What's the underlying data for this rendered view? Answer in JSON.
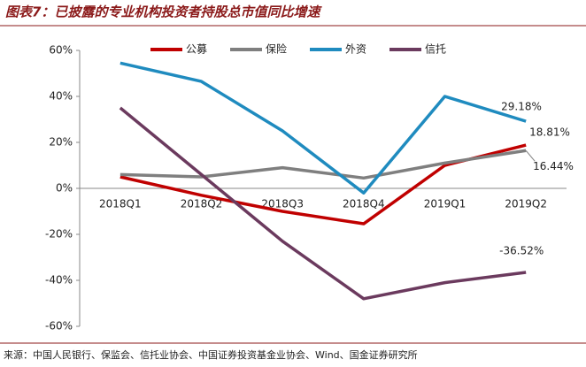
{
  "chart_data": {
    "type": "line",
    "title": "图表7：已披露的专业机构投资者持股总市值同比增速",
    "source": "来源：中国人民银行、保监会、信托业协会、中国证券投资基金业协会、Wind、国金证券研究所",
    "categories": [
      "2018Q1",
      "2018Q2",
      "2018Q3",
      "2018Q4",
      "2019Q1",
      "2019Q2"
    ],
    "series": [
      {
        "name": "公募",
        "color": "#c00000",
        "values": [
          5,
          -3,
          -10,
          -15.4,
          10,
          18.81
        ],
        "value_labels": [
          null,
          null,
          null,
          null,
          null,
          "18.81%"
        ]
      },
      {
        "name": "保险",
        "color": "#7f7f7f",
        "values": [
          6,
          5,
          9,
          4.5,
          11,
          16.44
        ],
        "value_labels": [
          null,
          null,
          null,
          null,
          null,
          "16.44%"
        ]
      },
      {
        "name": "外资",
        "color": "#1f8bbf",
        "values": [
          54.5,
          46.5,
          25,
          -2,
          40,
          29.18
        ],
        "value_labels": [
          null,
          null,
          null,
          null,
          null,
          "29.18%"
        ]
      },
      {
        "name": "信托",
        "color": "#6b3a5e",
        "values": [
          35,
          6,
          -23,
          -48,
          -41,
          -36.52
        ],
        "value_labels": [
          null,
          null,
          null,
          null,
          null,
          "-36.52%"
        ]
      }
    ],
    "ylim": [
      -60,
      60
    ],
    "yticks": [
      {
        "value": -60,
        "label": "-60%"
      },
      {
        "value": -40,
        "label": "-40%"
      },
      {
        "value": -20,
        "label": "-20%"
      },
      {
        "value": 0,
        "label": "0%"
      },
      {
        "value": 20,
        "label": "20%"
      },
      {
        "value": 40,
        "label": "40%"
      },
      {
        "value": 60,
        "label": "60%"
      }
    ],
    "legend": "top"
  }
}
